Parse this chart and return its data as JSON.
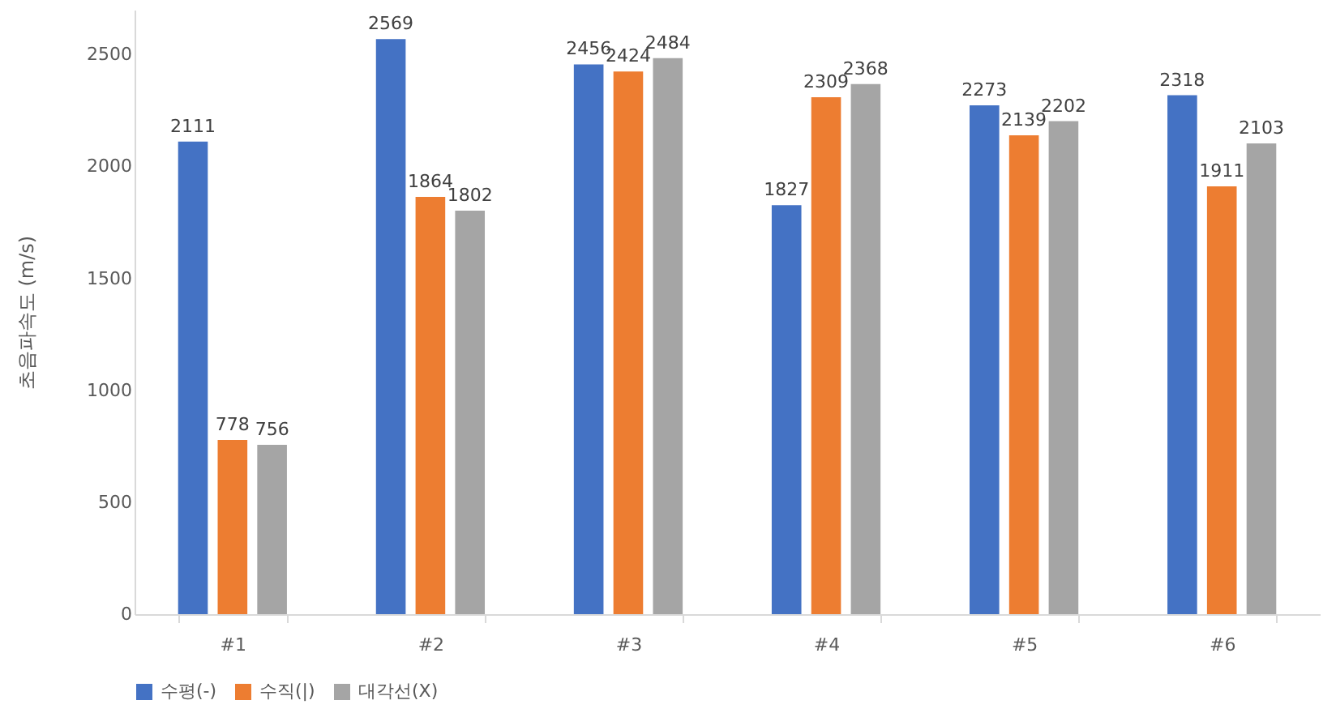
{
  "chart_data": {
    "type": "bar",
    "ylabel": "초음파속도 (m/s)",
    "categories": [
      "#1",
      "#2",
      "#3",
      "#4",
      "#5",
      "#6"
    ],
    "series": [
      {
        "name": "수평(-)",
        "color": "#4472c4",
        "values": [
          2111,
          2569,
          2456,
          1827,
          2273,
          2318
        ]
      },
      {
        "name": "수직(|)",
        "color": "#ed7d31",
        "values": [
          778,
          1864,
          2424,
          2309,
          2139,
          1911
        ]
      },
      {
        "name": "대각선(X)",
        "color": "#a5a5a5",
        "values": [
          756,
          1802,
          2484,
          2368,
          2202,
          2103
        ]
      }
    ],
    "ylim": [
      0,
      2700
    ],
    "yticks": [
      0,
      500,
      1000,
      1500,
      2000,
      2500
    ],
    "grid": false,
    "legend": "bottom",
    "data_labels": true
  }
}
